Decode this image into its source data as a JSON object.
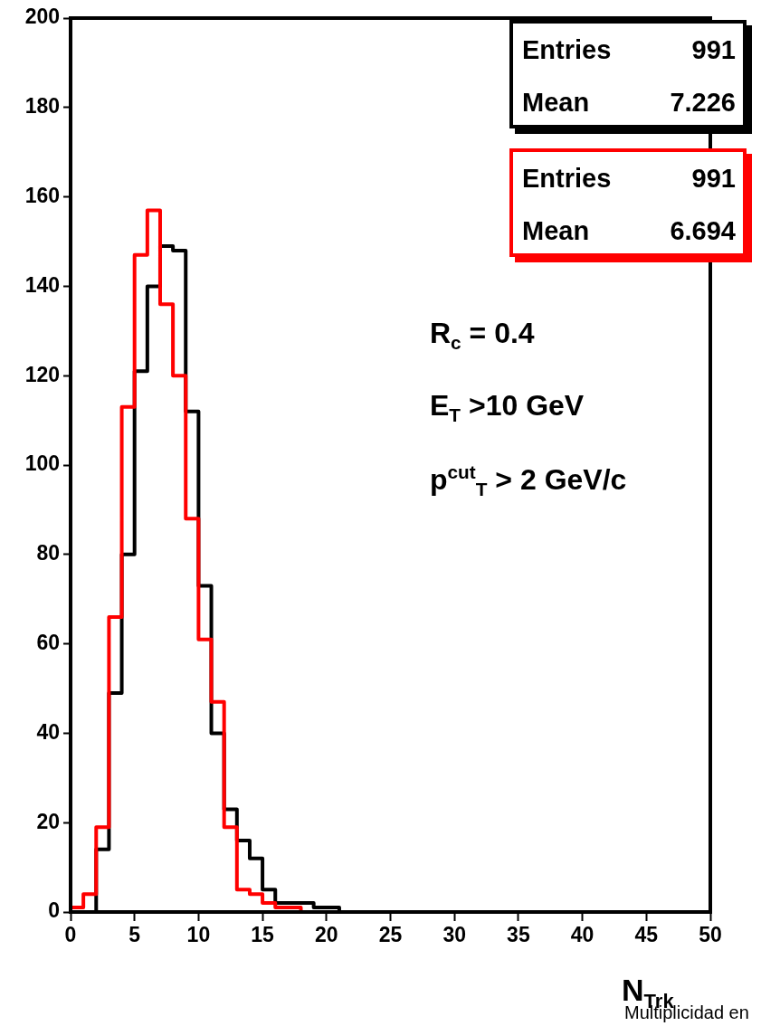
{
  "chart_data": {
    "type": "histogram",
    "xlabel": "N$_{Trk}$",
    "bins": [
      0,
      1,
      2,
      3,
      4,
      5,
      6,
      7,
      8,
      9,
      10,
      11,
      12,
      13,
      14,
      15,
      16,
      17,
      18,
      19,
      20,
      21,
      22,
      23,
      24,
      25,
      26,
      27,
      28,
      29,
      30,
      31,
      32,
      33,
      34,
      35,
      36,
      37,
      38,
      39,
      40,
      41,
      42,
      43,
      44,
      45,
      46,
      47,
      48,
      49,
      50
    ],
    "series": [
      {
        "color": "#000000",
        "values": [
          0,
          0,
          14,
          49,
          80,
          121,
          140,
          149,
          148,
          112,
          73,
          40,
          23,
          16,
          12,
          5,
          2,
          2,
          2,
          1,
          1,
          0,
          0,
          0,
          0,
          0,
          0,
          0,
          0,
          0,
          0,
          0,
          0,
          0,
          0,
          0,
          0,
          0,
          0,
          0,
          0,
          0,
          0,
          0,
          0,
          0,
          0,
          0,
          0,
          0
        ]
      },
      {
        "color": "#ff0000",
        "values": [
          1,
          4,
          19,
          66,
          113,
          147,
          157,
          136,
          120,
          88,
          61,
          47,
          19,
          5,
          4,
          2,
          1,
          1,
          0,
          0,
          0,
          0,
          0,
          0,
          0,
          0,
          0,
          0,
          0,
          0,
          0,
          0,
          0,
          0,
          0,
          0,
          0,
          0,
          0,
          0,
          0,
          0,
          0,
          0,
          0,
          0,
          0,
          0,
          0,
          0
        ]
      }
    ],
    "xlim": [
      0,
      50
    ],
    "xticks": [
      0,
      5,
      10,
      15,
      20,
      25,
      30,
      35,
      40,
      45,
      50
    ],
    "ylim": [
      0,
      200
    ],
    "yticks": [
      0,
      20,
      40,
      60,
      80,
      100,
      120,
      140,
      160,
      180,
      200
    ],
    "grid": false,
    "legend": false,
    "annotations": [
      "Entries 991",
      "Mean 7.226",
      "Entries 991",
      "Mean 6.694",
      "R$_{c}$ = 0.4",
      "E$_{T}$ >10 GeV",
      "p$^{cut}$$_{T}$ > 2 GeV/c",
      "Multiplicidad en"
    ]
  }
}
